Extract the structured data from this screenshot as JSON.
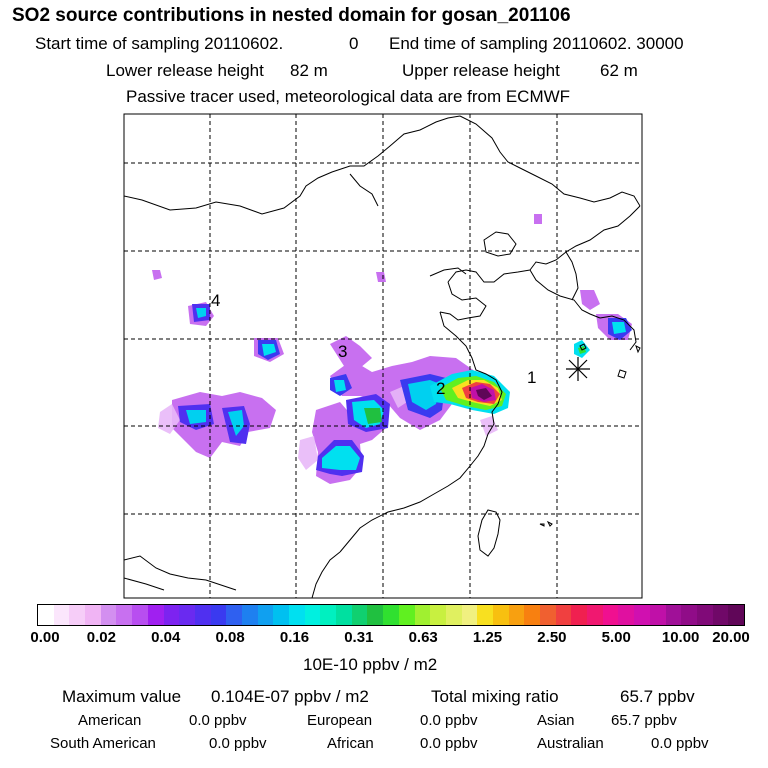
{
  "header": {
    "title": "SO2 source contributions in nested domain for gosan_201106",
    "start_label": "Start time of sampling 20110602.",
    "start_hour": "0",
    "end_label": "End time of sampling 20110602. 30000",
    "lower_label": "Lower release height",
    "lower_value": "82 m",
    "upper_label": "Upper release height",
    "upper_value": "62 m",
    "note": "Passive tracer used, meteorological data are from ECMWF"
  },
  "map": {
    "labels": [
      "1",
      "2",
      "3",
      "4"
    ]
  },
  "colorbar": {
    "ticks": [
      "0.00",
      "0.02",
      "0.04",
      "0.08",
      "0.16",
      "0.31",
      "0.63",
      "1.25",
      "2.50",
      "5.00",
      "10.00",
      "20.00"
    ],
    "unit": "10E-10 ppbv / m2",
    "colors": [
      "#ffffff",
      "#fbe6fc",
      "#f6cdf8",
      "#f0b4f4",
      "#d38ff0",
      "#c870f0",
      "#b84ef0",
      "#a020f0",
      "#7d23f0",
      "#6a2af0",
      "#5030f0",
      "#3a3af0",
      "#2f60f0",
      "#1e80f0",
      "#10a0f0",
      "#00c0f0",
      "#00e0f0",
      "#00f0e0",
      "#00f0c0",
      "#00e0a0",
      "#10d070",
      "#20c040",
      "#30e030",
      "#60f020",
      "#a0f030",
      "#c8f040",
      "#e0f060",
      "#f0f080",
      "#f8e020",
      "#f8c010",
      "#f8a010",
      "#f88010",
      "#f06030",
      "#f04040",
      "#f02050",
      "#f01870",
      "#f01090",
      "#e010a0",
      "#d010b0",
      "#c010a8",
      "#a01098",
      "#900c88",
      "#800a78",
      "#700868",
      "#600658"
    ]
  },
  "summary": {
    "max_label": "Maximum value",
    "max_value": "0.104E-07 ppbv / m2",
    "total_label": "Total mixing ratio",
    "total_value": "65.7 ppbv",
    "regions": [
      {
        "name": "American",
        "value": "0.0 ppbv"
      },
      {
        "name": "European",
        "value": "0.0 ppbv"
      },
      {
        "name": "Asian",
        "value": "65.7 ppbv"
      },
      {
        "name": "South American",
        "value": "0.0 ppbv"
      },
      {
        "name": "African",
        "value": "0.0 ppbv"
      },
      {
        "name": "Australian",
        "value": "0.0 ppbv"
      }
    ]
  }
}
